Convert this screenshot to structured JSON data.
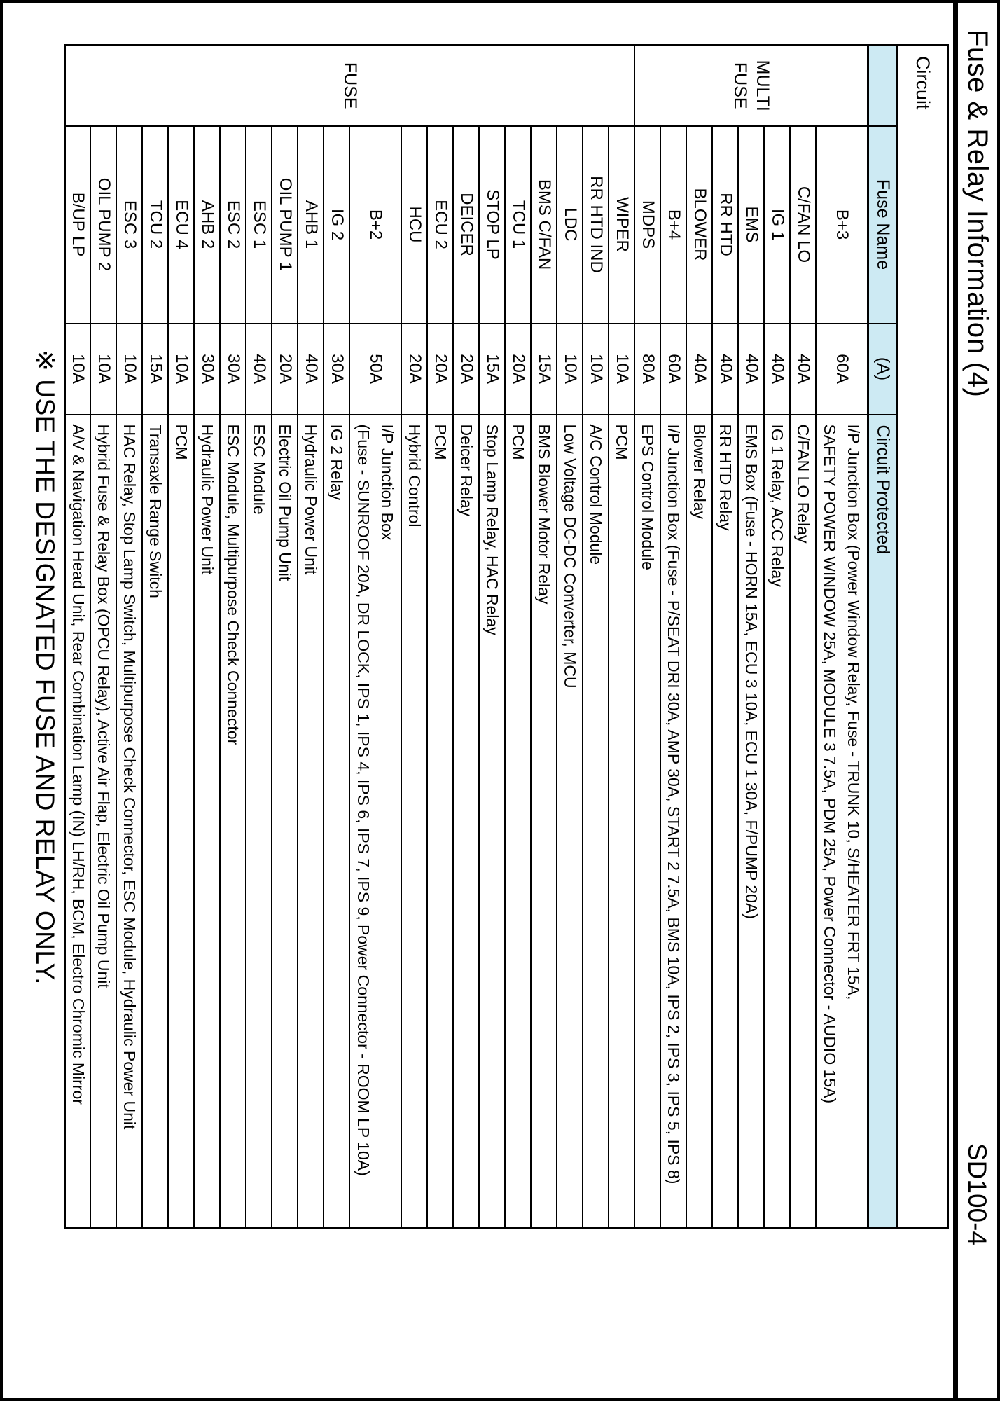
{
  "page": {
    "title": "Fuse & Relay Information (4)",
    "doc_code": "SD100-4",
    "note": "※ USE THE DESIGNATED FUSE AND RELAY ONLY.",
    "colors": {
      "header_fill": "#cdeaf3",
      "line": "#000000",
      "background": "#ffffff"
    }
  },
  "table": {
    "top_header": "Circuit",
    "columns": [
      "",
      "Fuse Name",
      "(A)",
      "Circuit Protected"
    ],
    "groups": [
      {
        "label_lines": [
          "MULTI",
          "FUSE"
        ],
        "span": 8
      },
      {
        "label_lines": [
          "FUSE"
        ],
        "span": 21
      }
    ],
    "rows": [
      {
        "name": "B+3",
        "amp": "60A",
        "protected": [
          "I/P Junction Box (Power Window Relay, Fuse - TRUNK 10, S/HEATER FRT 15A,",
          "SAFETY POWER WINDOW 25A, MODULE 3 7.5A, PDM 25A, Power Connector - AUDIO 15A)"
        ]
      },
      {
        "name": "C/FAN LO",
        "amp": "40A",
        "protected": [
          "C/FAN LO Relay"
        ]
      },
      {
        "name": "IG 1",
        "amp": "40A",
        "protected": [
          "IG 1 Relay, ACC Relay"
        ]
      },
      {
        "name": "EMS",
        "amp": "40A",
        "protected": [
          "EMS Box (Fuse - HORN 15A, ECU 3 10A, ECU 1 30A, F/PUMP 20A)"
        ]
      },
      {
        "name": "RR HTD",
        "amp": "40A",
        "protected": [
          "RR HTD Relay"
        ]
      },
      {
        "name": "BLOWER",
        "amp": "40A",
        "protected": [
          "Blower Relay"
        ]
      },
      {
        "name": "B+4",
        "amp": "60A",
        "protected": [
          "I/P Junction Box (Fuse - P/SEAT DRI 30A, AMP 30A, START 2 7.5A, BMS 10A, IPS 2, IPS 3, IPS 5, IPS 8)"
        ]
      },
      {
        "name": "MDPS",
        "amp": "80A",
        "protected": [
          "EPS Control Module"
        ]
      },
      {
        "name": "WIPER",
        "amp": "10A",
        "protected": [
          "PCM"
        ]
      },
      {
        "name": "RR HTD IND",
        "amp": "10A",
        "protected": [
          "A/C Control Module"
        ]
      },
      {
        "name": "LDC",
        "amp": "10A",
        "protected": [
          "Low Voltage DC-DC Converter, MCU"
        ]
      },
      {
        "name": "BMS C/FAN",
        "amp": "15A",
        "protected": [
          "BMS Blower Motor Relay"
        ]
      },
      {
        "name": "TCU 1",
        "amp": "20A",
        "protected": [
          "PCM"
        ]
      },
      {
        "name": "STOP LP",
        "amp": "15A",
        "protected": [
          "Stop Lamp Relay, HAC Relay"
        ]
      },
      {
        "name": "DEICER",
        "amp": "20A",
        "protected": [
          "Deicer Relay"
        ]
      },
      {
        "name": "ECU 2",
        "amp": "20A",
        "protected": [
          "PCM"
        ]
      },
      {
        "name": "HCU",
        "amp": "20A",
        "protected": [
          "Hybrid Control"
        ]
      },
      {
        "name": "B+2",
        "amp": "50A",
        "protected": [
          "I/P Junction Box",
          "(Fuse - SUNROOF 20A, DR LOCK, IPS 1, IPS 4, IPS 6, IPS 7, IPS 9, Power Connector - ROOM LP 10A)"
        ]
      },
      {
        "name": "IG 2",
        "amp": "30A",
        "protected": [
          "IG 2 Relay"
        ]
      },
      {
        "name": "AHB 1",
        "amp": "40A",
        "protected": [
          "Hydraulic Power Unit"
        ]
      },
      {
        "name": "OIL PUMP 1",
        "amp": "20A",
        "protected": [
          "Electric Oil Pump Unit"
        ]
      },
      {
        "name": "ESC 1",
        "amp": "40A",
        "protected": [
          "ESC Module"
        ]
      },
      {
        "name": "ESC 2",
        "amp": "30A",
        "protected": [
          "ESC Module, Multipurpose Check Connector"
        ]
      },
      {
        "name": "AHB 2",
        "amp": "30A",
        "protected": [
          "Hydraulic Power Unit"
        ]
      },
      {
        "name": "ECU 4",
        "amp": "10A",
        "protected": [
          "PCM"
        ]
      },
      {
        "name": "TCU 2",
        "amp": "15A",
        "protected": [
          "Transaxle Range Switch"
        ]
      },
      {
        "name": "ESC 3",
        "amp": "10A",
        "protected": [
          "HAC Relay, Stop Lamp Switch, Multipurpose Check Connector, ESC Module, Hydraulic Power Unit"
        ]
      },
      {
        "name": "OIL PUMP 2",
        "amp": "10A",
        "protected": [
          "Hybrid Fuse & Relay Box (OPCU Relay), Active Air Flap, Electric Oil Pump Unit"
        ]
      },
      {
        "name": "B/UP LP",
        "amp": "10A",
        "protected": [
          "A/V & Navigation Head Unit, Rear Combination Lamp (IN) LH/RH, BCM, Electro Chromic Mirror"
        ]
      }
    ]
  }
}
